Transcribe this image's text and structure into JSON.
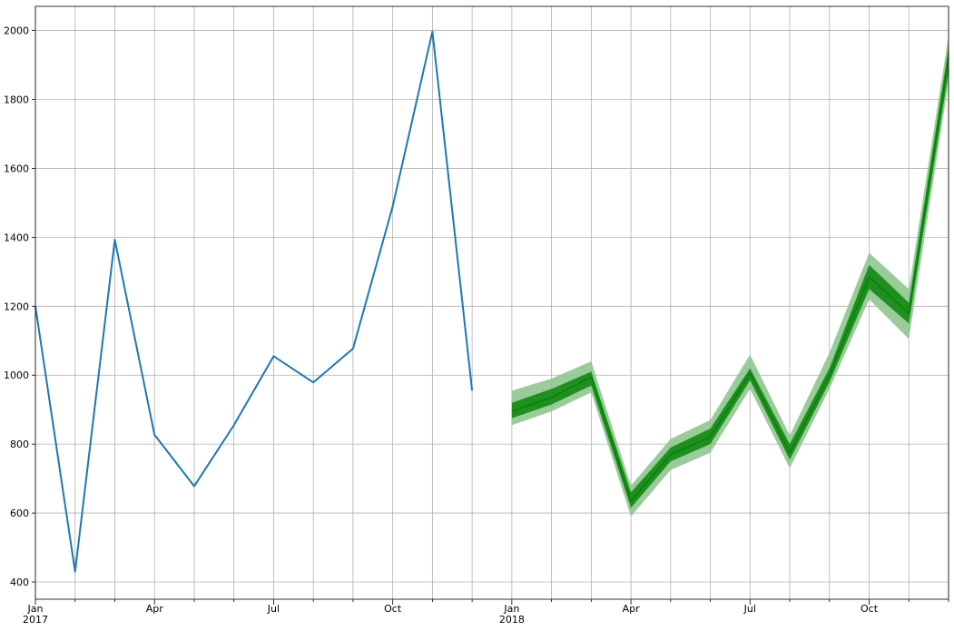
{
  "chart_data": {
    "type": "line",
    "title": "",
    "xlabel": "",
    "ylabel": "",
    "grid": true,
    "xlim": [
      "2017-01",
      "2018-12"
    ],
    "ylim": [
      350,
      2070
    ],
    "y_ticks": [
      400,
      600,
      800,
      1000,
      1200,
      1400,
      1600,
      1800,
      2000
    ],
    "x_major_ticks": [
      {
        "month": "2017-01",
        "label": "Jan",
        "sublabel": "2017"
      },
      {
        "month": "2017-04",
        "label": "Apr",
        "sublabel": ""
      },
      {
        "month": "2017-07",
        "label": "Jul",
        "sublabel": ""
      },
      {
        "month": "2017-10",
        "label": "Oct",
        "sublabel": ""
      },
      {
        "month": "2018-01",
        "label": "Jan",
        "sublabel": "2018"
      },
      {
        "month": "2018-04",
        "label": "Apr",
        "sublabel": ""
      },
      {
        "month": "2018-07",
        "label": "Jul",
        "sublabel": ""
      },
      {
        "month": "2018-10",
        "label": "Oct",
        "sublabel": ""
      }
    ],
    "x_minor_ticks": [
      "2017-02",
      "2017-03",
      "2017-05",
      "2017-06",
      "2017-08",
      "2017-09",
      "2017-11",
      "2017-12",
      "2018-02",
      "2018-03",
      "2018-05",
      "2018-06",
      "2018-08",
      "2018-09",
      "2018-11",
      "2018-12"
    ],
    "series": [
      {
        "kind": "observed",
        "color": "#1f77b4",
        "x": [
          "2017-01",
          "2017-02",
          "2017-03",
          "2017-04",
          "2017-05",
          "2017-06",
          "2017-07",
          "2017-08",
          "2017-09",
          "2017-10",
          "2017-11",
          "2017-12"
        ],
        "values": [
          1200,
          430,
          1393,
          827,
          678,
          855,
          1055,
          979,
          1077,
          1490,
          1997,
          955
        ]
      },
      {
        "kind": "forecast",
        "color": "#008000",
        "x": [
          "2018-01",
          "2018-02",
          "2018-03",
          "2018-04",
          "2018-05",
          "2018-06",
          "2018-07",
          "2018-08",
          "2018-09",
          "2018-10",
          "2018-11",
          "2018-12"
        ],
        "values": [
          895,
          935,
          995,
          635,
          770,
          820,
          1005,
          775,
          1000,
          1285,
          1180,
          1920
        ],
        "inner_band": {
          "color": "#008000",
          "lower": [
            875,
            915,
            970,
            615,
            750,
            800,
            985,
            755,
            980,
            1250,
            1150,
            1880
          ],
          "upper": [
            920,
            960,
            1010,
            660,
            790,
            845,
            1020,
            800,
            1020,
            1320,
            1210,
            1950
          ]
        },
        "outer_band": {
          "color": "#8fc58f",
          "lower": [
            855,
            895,
            950,
            590,
            725,
            775,
            960,
            730,
            960,
            1220,
            1105,
            1850
          ],
          "upper": [
            955,
            990,
            1040,
            680,
            815,
            870,
            1060,
            825,
            1065,
            1355,
            1250,
            1985
          ]
        }
      }
    ]
  }
}
